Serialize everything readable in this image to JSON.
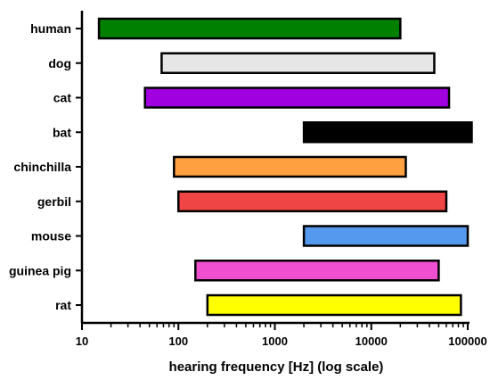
{
  "chart_data": {
    "type": "bar",
    "orientation": "horizontal",
    "xscale": "log",
    "xlabel": "hearing frequency [Hz] (log scale)",
    "xlim": [
      10,
      100000
    ],
    "xticks": [
      "10",
      "100",
      "1000",
      "10000",
      "100000"
    ],
    "grid": false,
    "categories": [
      "human",
      "dog",
      "cat",
      "bat",
      "chinchilla",
      "gerbil",
      "mouse",
      "guinea pig",
      "rat"
    ],
    "ranges": [
      {
        "category": "human",
        "low": 15,
        "high": 20000,
        "color": "#008000"
      },
      {
        "category": "dog",
        "low": 67,
        "high": 45000,
        "color": "#e6e6e6"
      },
      {
        "category": "cat",
        "low": 45,
        "high": 64000,
        "color": "#a000e0"
      },
      {
        "category": "bat",
        "low": 2000,
        "high": 110000,
        "color": "#000000"
      },
      {
        "category": "chinchilla",
        "low": 90,
        "high": 22800,
        "color": "#ffa040"
      },
      {
        "category": "gerbil",
        "low": 100,
        "high": 60000,
        "color": "#f04545"
      },
      {
        "category": "mouse",
        "low": 2000,
        "high": 100000,
        "color": "#5599ee"
      },
      {
        "category": "guinea pig",
        "low": 150,
        "high": 50000,
        "color": "#f050d0"
      },
      {
        "category": "rat",
        "low": 200,
        "high": 85000,
        "color": "#ffff00"
      }
    ]
  }
}
